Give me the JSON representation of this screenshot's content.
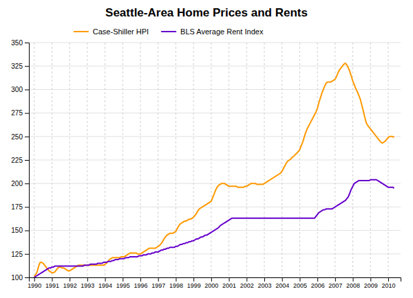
{
  "chart_data": {
    "type": "line",
    "title": "Seattle-Area Home Prices and Rents",
    "x": [
      1990.0,
      1990.083,
      1990.167,
      1990.25,
      1990.333,
      1990.417,
      1990.5,
      1990.583,
      1990.667,
      1990.75,
      1990.833,
      1990.917,
      1991.0,
      1991.083,
      1991.167,
      1991.25,
      1991.333,
      1991.417,
      1991.5,
      1991.583,
      1991.667,
      1991.75,
      1991.833,
      1991.917,
      1992.0,
      1992.083,
      1992.167,
      1992.25,
      1992.333,
      1992.417,
      1992.5,
      1992.583,
      1992.667,
      1992.75,
      1992.833,
      1992.917,
      1993.0,
      1993.083,
      1993.167,
      1993.25,
      1993.333,
      1993.417,
      1993.5,
      1993.583,
      1993.667,
      1993.75,
      1993.833,
      1993.917,
      1994.0,
      1994.083,
      1994.167,
      1994.25,
      1994.333,
      1994.417,
      1994.5,
      1994.583,
      1994.667,
      1994.75,
      1994.833,
      1994.917,
      1995.0,
      1995.083,
      1995.167,
      1995.25,
      1995.333,
      1995.417,
      1995.5,
      1995.583,
      1995.667,
      1995.75,
      1995.833,
      1995.917,
      1996.0,
      1996.083,
      1996.167,
      1996.25,
      1996.333,
      1996.417,
      1996.5,
      1996.583,
      1996.667,
      1996.75,
      1996.833,
      1996.917,
      1997.0,
      1997.083,
      1997.167,
      1997.25,
      1997.333,
      1997.417,
      1997.5,
      1997.583,
      1997.667,
      1997.75,
      1997.833,
      1997.917,
      1998.0,
      1998.083,
      1998.167,
      1998.25,
      1998.333,
      1998.417,
      1998.5,
      1998.583,
      1998.667,
      1998.75,
      1998.833,
      1998.917,
      1999.0,
      1999.083,
      1999.167,
      1999.25,
      1999.333,
      1999.417,
      1999.5,
      1999.583,
      1999.667,
      1999.75,
      1999.833,
      1999.917,
      2000.0,
      2000.083,
      2000.167,
      2000.25,
      2000.333,
      2000.417,
      2000.5,
      2000.583,
      2000.667,
      2000.75,
      2000.833,
      2000.917,
      2001.0,
      2001.083,
      2001.167,
      2001.25,
      2001.333,
      2001.417,
      2001.5,
      2001.583,
      2001.667,
      2001.75,
      2001.833,
      2001.917,
      2002.0,
      2002.083,
      2002.167,
      2002.25,
      2002.333,
      2002.417,
      2002.5,
      2002.583,
      2002.667,
      2002.75,
      2002.833,
      2002.917,
      2003.0,
      2003.083,
      2003.167,
      2003.25,
      2003.333,
      2003.417,
      2003.5,
      2003.583,
      2003.667,
      2003.75,
      2003.833,
      2003.917,
      2004.0,
      2004.083,
      2004.167,
      2004.25,
      2004.333,
      2004.417,
      2004.5,
      2004.583,
      2004.667,
      2004.75,
      2004.833,
      2004.917,
      2005.0,
      2005.083,
      2005.167,
      2005.25,
      2005.333,
      2005.417,
      2005.5,
      2005.583,
      2005.667,
      2005.75,
      2005.833,
      2005.917,
      2006.0,
      2006.083,
      2006.167,
      2006.25,
      2006.333,
      2006.417,
      2006.5,
      2006.583,
      2006.667,
      2006.75,
      2006.833,
      2006.917,
      2007.0,
      2007.083,
      2007.167,
      2007.25,
      2007.333,
      2007.417,
      2007.5,
      2007.583,
      2007.667,
      2007.75,
      2007.833,
      2007.917,
      2008.0,
      2008.083,
      2008.167,
      2008.25,
      2008.333,
      2008.417,
      2008.5,
      2008.583,
      2008.667,
      2008.75,
      2008.833,
      2008.917,
      2009.0,
      2009.083,
      2009.167,
      2009.25,
      2009.333,
      2009.417,
      2009.5,
      2009.583,
      2009.667,
      2009.75,
      2009.833,
      2009.917,
      2010.0,
      2010.083,
      2010.167,
      2010.25,
      2010.333
    ],
    "series": [
      {
        "name": "Case-Shiller HPI",
        "color": "#FF9900",
        "values": [
          101,
          103,
          106,
          112,
          116,
          116,
          115,
          113,
          111,
          109,
          107,
          106,
          105,
          105,
          106,
          108,
          110,
          111,
          111,
          110,
          110,
          109,
          108,
          107,
          107,
          108,
          109,
          110,
          111,
          112,
          113,
          113,
          113,
          113,
          113,
          113,
          113,
          113,
          113,
          113,
          113,
          113,
          113,
          113,
          113,
          113,
          113,
          113,
          114,
          115,
          117,
          119,
          120,
          121,
          121,
          121,
          121,
          121,
          121,
          122,
          122,
          122,
          123,
          124,
          125,
          126,
          126,
          126,
          126,
          126,
          125,
          125,
          125,
          126,
          127,
          128,
          129,
          130,
          131,
          131,
          131,
          131,
          131,
          132,
          133,
          134,
          136,
          138,
          141,
          143,
          145,
          146,
          147,
          147,
          147,
          148,
          149,
          152,
          155,
          157,
          158,
          159,
          160,
          160,
          161,
          162,
          162,
          163,
          164,
          166,
          168,
          171,
          173,
          174,
          175,
          176,
          177,
          178,
          179,
          180,
          181,
          185,
          189,
          193,
          196,
          198,
          199,
          200,
          200,
          200,
          199,
          198,
          197,
          197,
          197,
          197,
          197,
          197,
          196,
          196,
          196,
          196,
          196,
          197,
          197,
          198,
          199,
          200,
          200,
          200,
          200,
          199,
          199,
          199,
          199,
          199,
          200,
          201,
          202,
          203,
          204,
          205,
          206,
          207,
          208,
          209,
          210,
          211,
          213,
          216,
          219,
          222,
          224,
          225,
          226,
          228,
          229,
          231,
          232,
          234,
          236,
          240,
          244,
          249,
          254,
          258,
          261,
          264,
          267,
          270,
          273,
          276,
          280,
          286,
          291,
          296,
          300,
          304,
          307,
          308,
          308,
          308,
          309,
          310,
          311,
          314,
          318,
          321,
          323,
          325,
          327,
          328,
          326,
          323,
          319,
          314,
          309,
          305,
          301,
          298,
          294,
          290,
          284,
          278,
          271,
          265,
          262,
          260,
          258,
          256,
          254,
          252,
          250,
          248,
          246,
          244,
          243,
          244,
          245,
          247,
          249,
          250,
          250,
          250,
          249
        ]
      },
      {
        "name": "BLS Average Rent Index",
        "color": "#6600CC",
        "values": [
          100,
          101,
          102,
          103,
          104,
          105,
          106,
          107,
          108,
          109,
          110,
          110,
          111,
          111,
          112,
          112,
          112,
          112,
          112,
          112,
          112,
          112,
          112,
          112,
          112,
          112,
          112,
          112,
          112,
          112,
          112,
          112,
          112,
          112,
          113,
          113,
          113,
          113,
          114,
          114,
          114,
          114,
          114,
          115,
          115,
          115,
          115,
          116,
          116,
          116,
          117,
          117,
          117,
          118,
          118,
          119,
          119,
          119,
          120,
          120,
          120,
          120,
          121,
          121,
          121,
          122,
          122,
          122,
          122,
          122,
          122,
          123,
          123,
          123,
          124,
          124,
          124,
          125,
          125,
          125,
          126,
          126,
          127,
          127,
          127,
          128,
          129,
          129,
          130,
          130,
          131,
          131,
          132,
          132,
          132,
          132,
          133,
          133,
          134,
          135,
          135,
          136,
          136,
          137,
          137,
          138,
          138,
          139,
          139,
          140,
          141,
          141,
          142,
          143,
          143,
          144,
          145,
          145,
          146,
          147,
          148,
          149,
          150,
          151,
          152,
          153,
          155,
          156,
          157,
          158,
          159,
          160,
          161,
          162,
          163,
          163,
          163,
          163,
          163,
          163,
          163,
          163,
          163,
          163,
          163,
          163,
          163,
          163,
          163,
          163,
          163,
          163,
          163,
          163,
          163,
          163,
          163,
          163,
          163,
          163,
          163,
          163,
          163,
          163,
          163,
          163,
          163,
          163,
          163,
          163,
          163,
          163,
          163,
          163,
          163,
          163,
          163,
          163,
          163,
          163,
          163,
          163,
          163,
          163,
          163,
          163,
          163,
          163,
          163,
          163,
          163,
          165,
          167,
          169,
          170,
          171,
          172,
          172,
          173,
          173,
          173,
          173,
          173,
          174,
          175,
          176,
          177,
          178,
          179,
          180,
          181,
          182,
          184,
          186,
          190,
          194,
          197,
          200,
          201,
          202,
          203,
          203,
          203,
          203,
          203,
          203,
          203,
          203,
          204,
          204,
          204,
          204,
          204,
          203,
          202,
          201,
          200,
          199,
          198,
          197,
          196,
          196,
          196,
          196,
          195
        ]
      }
    ],
    "xlim": [
      1989.7,
      2010.7
    ],
    "xticks": [
      1990,
      1991,
      1992,
      1993,
      1994,
      1995,
      1996,
      1997,
      1998,
      1999,
      2000,
      2001,
      2002,
      2003,
      2004,
      2005,
      2006,
      2007,
      2008,
      2009,
      2010
    ],
    "ylim": [
      100,
      350
    ],
    "yticks": [
      100,
      125,
      150,
      175,
      200,
      225,
      250,
      275,
      300,
      325,
      350
    ],
    "grid": true,
    "legend": "upper left"
  }
}
